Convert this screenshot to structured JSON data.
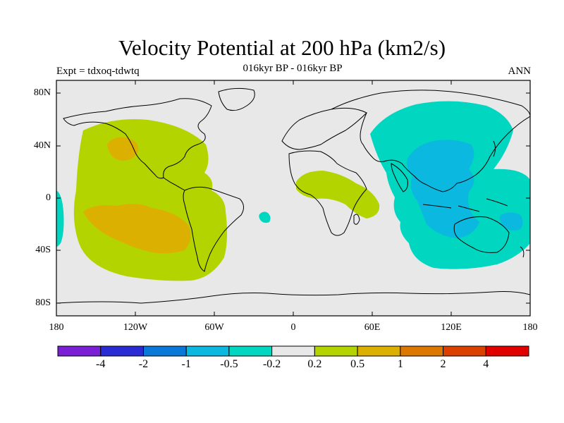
{
  "title": "Velocity Potential at 200 hPa (km2/s)",
  "subtitle": "016kyr BP - 016kyr BP",
  "left_label": "Expt = tdxoq-tdwtq",
  "right_label": "ANN",
  "lat_labels": [
    "80N",
    "40N",
    "0",
    "40S",
    "80S"
  ],
  "lon_labels": [
    "180",
    "120W",
    "60W",
    "0",
    "60E",
    "120E",
    "180"
  ],
  "colorbar": {
    "labels": [
      "-4",
      "-2",
      "-1",
      "-0.5",
      "-0.2",
      "0.2",
      "0.5",
      "1",
      "2",
      "4"
    ],
    "colors": [
      "#7a1fd6",
      "#2b2bd6",
      "#0a78d8",
      "#0ab8e0",
      "#00d6c0",
      "#e8e8e8",
      "#b4d400",
      "#dcb000",
      "#dc7800",
      "#dc4000",
      "#e00000"
    ]
  },
  "map_colors": {
    "background": "#e8e8e8",
    "positive_weak": "#b4d400",
    "positive_mid": "#dcb000",
    "negative_weak": "#00d6c0",
    "negative_mid": "#0ab8e0"
  }
}
